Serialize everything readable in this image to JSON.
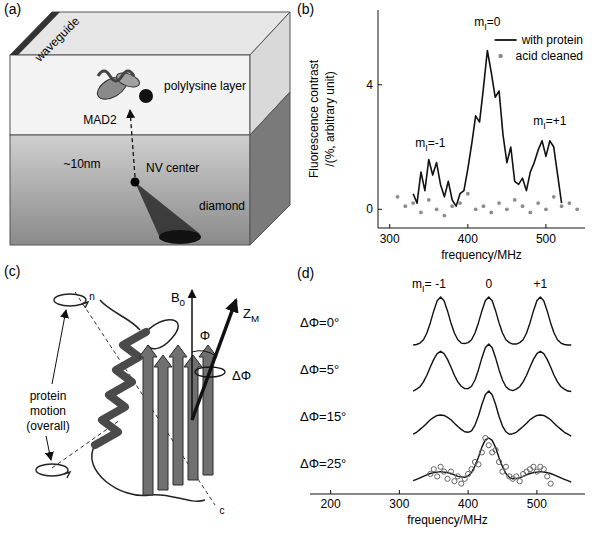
{
  "panels": {
    "a": {
      "letter": "(a)",
      "waveguide": "waveguide",
      "layer": "polylysine layer",
      "protein": "MAD2",
      "distance": "~10nm",
      "nv": "NV center",
      "substrate": "diamond"
    },
    "c": {
      "letter": "(c)",
      "motion": [
        "protein",
        "motion",
        "(overall)"
      ],
      "field": {
        "base": "B",
        "sub": "0"
      },
      "axis": {
        "base": "Z",
        "sub": "M"
      },
      "angle": "Φ",
      "spread": "ΔΦ",
      "n_term": "n",
      "c_term": "c"
    }
  },
  "chart_data": [
    {
      "type": "line",
      "letter": "(b)",
      "x_label": "frequency/MHz",
      "y_label": [
        "Fluorescence contrast",
        "/(%, arbitrary unit)"
      ],
      "xlim": [
        285,
        550
      ],
      "xticks": [
        300,
        400,
        500
      ],
      "ylim": [
        -0.6,
        6.4
      ],
      "yticks": [
        0,
        4
      ],
      "legend": "top-right",
      "annotations": [
        {
          "base": "m",
          "sub": "I",
          "rest": "=-1",
          "x": 352,
          "y": 2.0
        },
        {
          "base": "m",
          "sub": "I",
          "rest": "=0",
          "x": 425,
          "y": 5.9
        },
        {
          "base": "m",
          "sub": "I",
          "rest": "=+1",
          "x": 505,
          "y": 2.7
        }
      ],
      "series": [
        {
          "name": "with protein",
          "type": "line",
          "color": "#111111",
          "line_style": "solid",
          "x": [
            330,
            335,
            340,
            345,
            350,
            355,
            360,
            365,
            370,
            375,
            380,
            385,
            390,
            395,
            400,
            405,
            410,
            415,
            420,
            425,
            430,
            435,
            440,
            445,
            450,
            455,
            460,
            465,
            470,
            475,
            480,
            485,
            490,
            495,
            500,
            505,
            510,
            515,
            520
          ],
          "values": [
            0.5,
            0.2,
            1.2,
            0.6,
            1.6,
            1.1,
            1.5,
            0.8,
            0.4,
            0.9,
            0.3,
            0.1,
            0.5,
            0.6,
            1.3,
            2.1,
            3.0,
            2.8,
            3.9,
            5.1,
            4.4,
            3.6,
            3.8,
            2.4,
            1.5,
            2.0,
            0.9,
            0.8,
            1.0,
            0.6,
            1.2,
            1.5,
            1.9,
            2.2,
            1.7,
            2.2,
            2.0,
            1.1,
            0.2
          ]
        },
        {
          "name": "acid cleaned",
          "type": "scatter",
          "marker": "circle",
          "color": "#8c8c8c",
          "x": [
            310,
            320,
            330,
            340,
            350,
            360,
            370,
            380,
            390,
            400,
            410,
            420,
            430,
            440,
            450,
            460,
            470,
            480,
            490,
            500,
            510,
            520,
            530,
            540
          ],
          "values": [
            0.4,
            0.1,
            0.2,
            -0.1,
            0.3,
            0.0,
            -0.2,
            0.1,
            0.2,
            0.5,
            0.0,
            0.1,
            -0.1,
            0.2,
            0.0,
            0.3,
            0.1,
            -0.1,
            0.2,
            0.0,
            0.4,
            0.1,
            0.2,
            0.0
          ]
        }
      ]
    },
    {
      "type": "line",
      "letter": "(d)",
      "x_label": "frequency/MHz",
      "xlim": [
        170,
        570
      ],
      "xticks": [
        200,
        300,
        400,
        500
      ],
      "ylim": [
        0,
        1
      ],
      "tick_labels": "x",
      "peak_label": {
        "base": "m",
        "sub": "I",
        "rest": "="
      },
      "peaks": [
        {
          "label": "-1",
          "x": 360
        },
        {
          "label": "0",
          "x": 430
        },
        {
          "label": "+1",
          "x": 505
        }
      ],
      "x": [
        320,
        325,
        330,
        335,
        340,
        345,
        350,
        355,
        360,
        365,
        370,
        375,
        380,
        385,
        390,
        395,
        400,
        405,
        410,
        415,
        420,
        425,
        430,
        435,
        440,
        445,
        450,
        455,
        460,
        465,
        470,
        475,
        480,
        485,
        490,
        495,
        500,
        505,
        510,
        515,
        520,
        525,
        530,
        535,
        540,
        545,
        550
      ],
      "series": [
        {
          "name": "ΔΦ=0°",
          "color": "#111111",
          "values": [
            0.0,
            0.01,
            0.04,
            0.11,
            0.25,
            0.46,
            0.71,
            0.92,
            1.0,
            0.92,
            0.71,
            0.46,
            0.25,
            0.11,
            0.04,
            0.03,
            0.05,
            0.11,
            0.25,
            0.46,
            0.71,
            0.92,
            1.0,
            0.92,
            0.71,
            0.46,
            0.25,
            0.11,
            0.05,
            0.02,
            0.02,
            0.05,
            0.11,
            0.25,
            0.46,
            0.71,
            0.92,
            1.0,
            0.92,
            0.71,
            0.46,
            0.25,
            0.11,
            0.04,
            0.01,
            0.0,
            0.0
          ]
        },
        {
          "name": "ΔΦ=5°",
          "color": "#111111",
          "values": [
            0.02,
            0.06,
            0.11,
            0.21,
            0.35,
            0.52,
            0.68,
            0.8,
            0.85,
            0.8,
            0.68,
            0.52,
            0.35,
            0.21,
            0.12,
            0.07,
            0.07,
            0.12,
            0.25,
            0.46,
            0.71,
            0.92,
            1.0,
            0.92,
            0.71,
            0.46,
            0.25,
            0.11,
            0.05,
            0.03,
            0.06,
            0.11,
            0.21,
            0.35,
            0.52,
            0.68,
            0.8,
            0.85,
            0.8,
            0.68,
            0.52,
            0.35,
            0.21,
            0.11,
            0.06,
            0.02,
            0.01
          ]
        },
        {
          "name": "ΔΦ=15°",
          "color": "#111111",
          "values": [
            0.1,
            0.14,
            0.2,
            0.26,
            0.33,
            0.4,
            0.45,
            0.49,
            0.5,
            0.49,
            0.45,
            0.4,
            0.33,
            0.26,
            0.2,
            0.15,
            0.14,
            0.17,
            0.29,
            0.48,
            0.72,
            0.92,
            1.0,
            0.92,
            0.72,
            0.47,
            0.27,
            0.15,
            0.1,
            0.11,
            0.14,
            0.2,
            0.26,
            0.33,
            0.4,
            0.45,
            0.49,
            0.5,
            0.49,
            0.45,
            0.4,
            0.33,
            0.26,
            0.2,
            0.14,
            0.1,
            0.06
          ]
        },
        {
          "name": "ΔΦ=25°",
          "color": "#111111",
          "values": [
            0.11,
            0.14,
            0.17,
            0.2,
            0.23,
            0.26,
            0.28,
            0.29,
            0.3,
            0.29,
            0.28,
            0.26,
            0.23,
            0.2,
            0.19,
            0.18,
            0.21,
            0.28,
            0.42,
            0.6,
            0.81,
            0.96,
            1.0,
            0.95,
            0.8,
            0.59,
            0.4,
            0.26,
            0.18,
            0.15,
            0.16,
            0.17,
            0.2,
            0.23,
            0.26,
            0.28,
            0.29,
            0.3,
            0.29,
            0.28,
            0.26,
            0.23,
            0.2,
            0.17,
            0.14,
            0.11,
            0.08
          ],
          "measured": {
            "marker": "circle",
            "color": "#666666",
            "x": [
              345,
              350,
              355,
              360,
              365,
              370,
              375,
              380,
              385,
              390,
              395,
              400,
              405,
              410,
              415,
              420,
              425,
              430,
              435,
              440,
              445,
              450,
              455,
              460,
              465,
              470,
              475,
              480,
              485,
              490,
              495,
              500,
              505,
              510,
              515,
              520
            ],
            "values": [
              0.25,
              0.35,
              0.2,
              0.4,
              0.3,
              0.15,
              0.3,
              0.1,
              0.2,
              0.05,
              0.15,
              0.25,
              0.35,
              0.5,
              0.45,
              0.7,
              1.0,
              0.85,
              0.7,
              0.75,
              0.5,
              0.3,
              0.4,
              0.2,
              0.15,
              0.2,
              0.1,
              0.25,
              0.3,
              0.35,
              0.4,
              0.3,
              0.4,
              0.35,
              0.2,
              0.05
            ]
          }
        }
      ]
    }
  ]
}
